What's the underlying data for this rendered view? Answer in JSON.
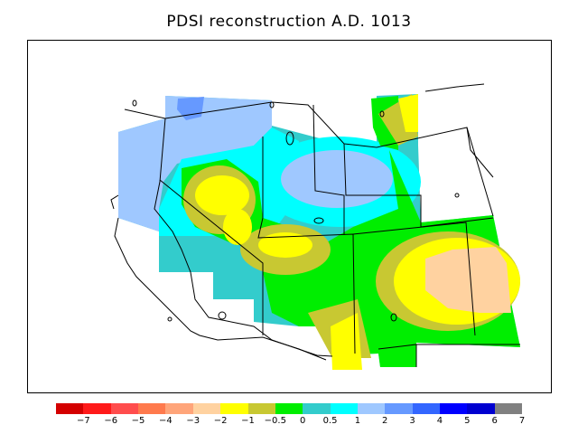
{
  "title": "PDSI reconstruction A.D. 1013",
  "colorbar": {
    "colors": [
      "#d40000",
      "#ff1a1a",
      "#ff4d4d",
      "#ff7a4d",
      "#ffa57a",
      "#ffd2a0",
      "#ffff00",
      "#c8c832",
      "#00ee00",
      "#33cccc",
      "#00ffff",
      "#9fc8ff",
      "#6699ff",
      "#3366ff",
      "#0000ff",
      "#0000d0",
      "#808080"
    ],
    "labels": [
      "−7",
      "−6",
      "−5",
      "−4",
      "−3",
      "−2",
      "−1",
      "−0.5",
      "0",
      "0.5",
      "1",
      "2",
      "3",
      "4",
      "5",
      "6",
      "7"
    ]
  }
}
